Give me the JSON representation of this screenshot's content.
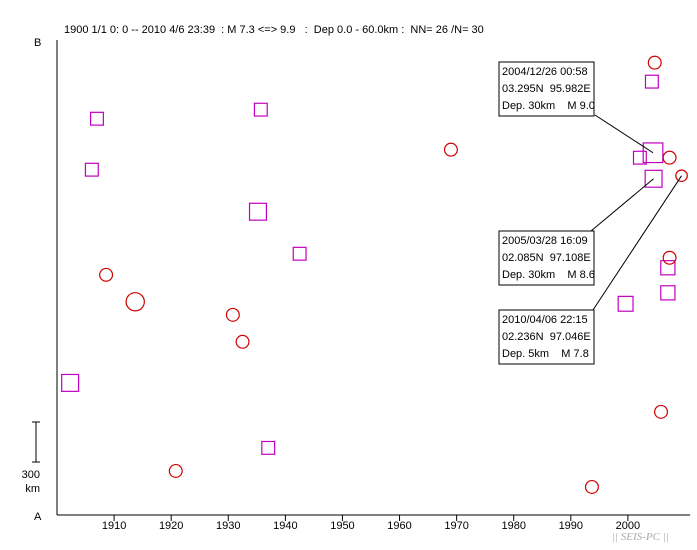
{
  "chart_data": {
    "type": "scatter",
    "title": "1900 1/1 0: 0 -- 2010 4/6 23:39  : M 7.3 <=> 9.9   :  Dep 0.0 - 60.0km :  NN= 26 /N= 30",
    "y_top_label": "B",
    "y_bottom_label": "A",
    "xlim": [
      1900,
      2010
    ],
    "xticks": [
      1910,
      1920,
      1930,
      1940,
      1950,
      1960,
      1970,
      1980,
      1990,
      2000
    ],
    "ylim": [
      0,
      3560
    ],
    "scale_bar": {
      "value": 300,
      "label": "300",
      "unit": "km"
    },
    "series": [
      {
        "marker": "square",
        "color": "#c000c0",
        "x": [
          1907.0,
          1906.1,
          1935.7,
          1935.2,
          1942.5,
          1902.3,
          1937.0,
          2004.2,
          2002.1,
          2004.4,
          2004.5,
          2007.0,
          2007.0,
          1999.6
        ],
        "values": [
          2970,
          2588,
          3038,
          2273,
          1958,
          990,
          503,
          3248,
          2678,
          2715,
          2520,
          1853,
          1665,
          1583
        ],
        "magnitudes": [
          8.0,
          8.0,
          8.0,
          8.6,
          8.0,
          8.6,
          8.0,
          8.0,
          8.0,
          9.0,
          8.6,
          8.2,
          8.2,
          8.3
        ]
      },
      {
        "marker": "circle",
        "color": "#d00000",
        "x": [
          2004.7,
          2007.3,
          2009.4,
          1908.6,
          1913.7,
          1930.8,
          1932.5,
          1969.0,
          2007.3,
          2005.8,
          1920.8,
          1993.7
        ],
        "values": [
          3390,
          2678,
          2543,
          1800,
          1598,
          1500,
          1298,
          2738,
          1928,
          773,
          330,
          210
        ],
        "magnitudes": [
          8.0,
          8.0,
          7.8,
          8.0,
          8.8,
          8.0,
          8.0,
          8.0,
          8.0,
          8.0,
          8.0,
          8.0
        ]
      }
    ],
    "annotations": [
      {
        "lines": [
          "2004/12/26 00:58",
          "03.295N  95.982E",
          "Dep. 30km    M 9.0"
        ],
        "series": 0,
        "point": 9
      },
      {
        "lines": [
          "2005/03/28 16:09",
          "02.085N  97.108E",
          "Dep. 30km    M 8.6"
        ],
        "series": 0,
        "point": 10
      },
      {
        "lines": [
          "2010/04/06 22:15",
          "02.236N  97.046E",
          "Dep. 5km    M 7.8"
        ],
        "series": 1,
        "point": 2
      }
    ],
    "watermark": "|| SEIS-PC ||"
  }
}
